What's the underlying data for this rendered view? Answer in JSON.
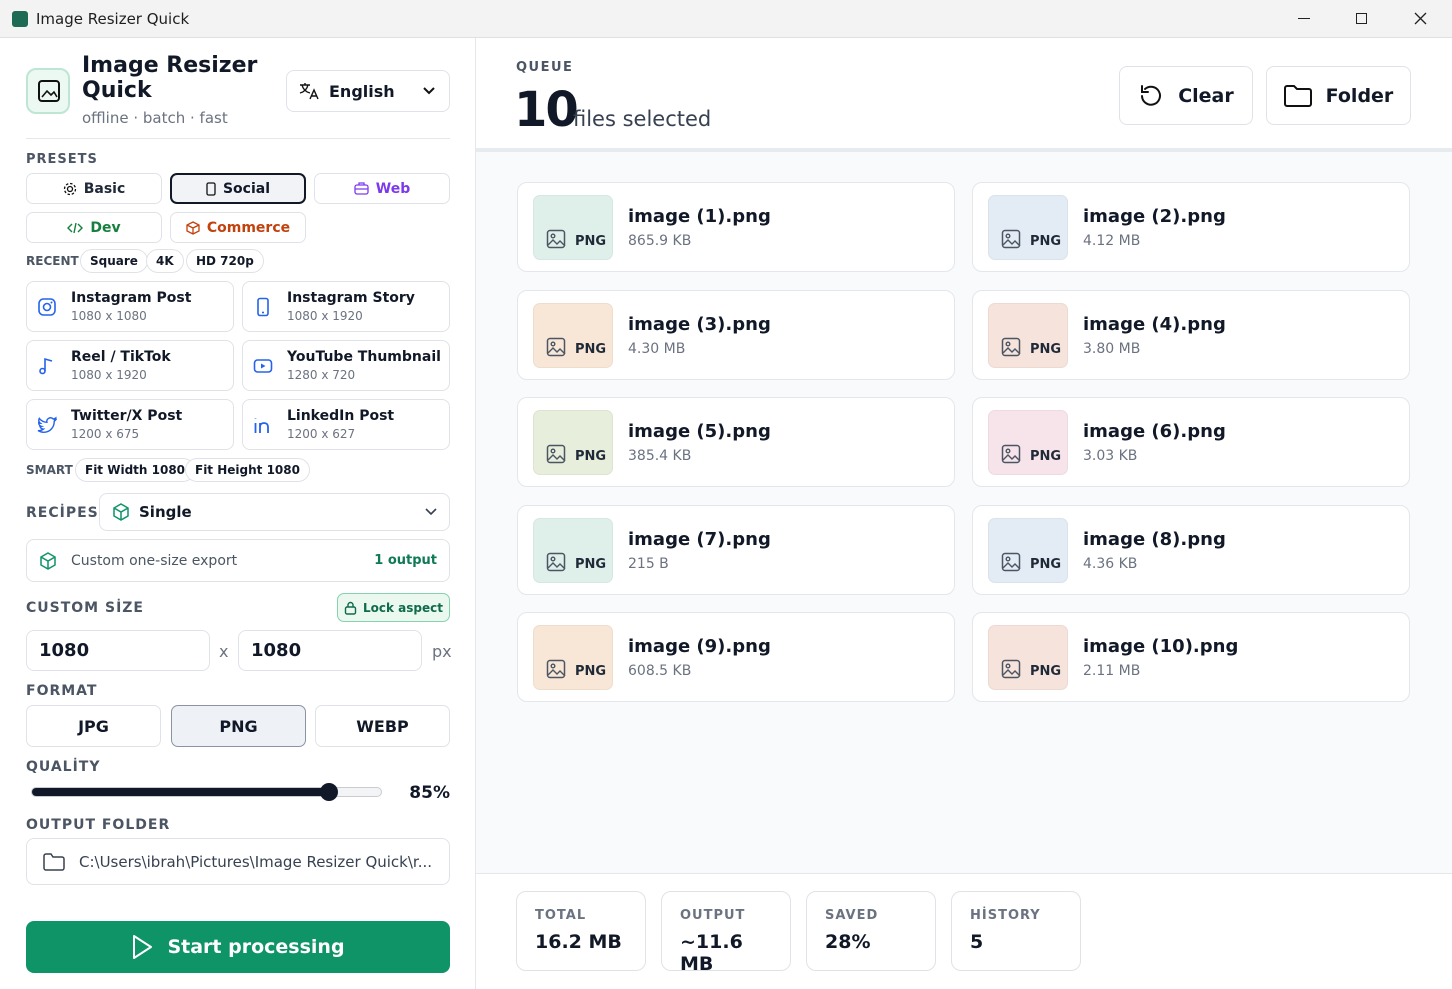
{
  "window": {
    "title": "Image Resizer Quick"
  },
  "sidebar": {
    "app_name": "Image Resizer Quick",
    "tagline": "offline · batch · fast",
    "language": "English",
    "presets_label": "PRESETS",
    "presets": [
      {
        "label": "Basic",
        "color": "#1f2937"
      },
      {
        "label": "Social",
        "color": "#111827",
        "selected": true
      },
      {
        "label": "Web",
        "color": "#7c3aed"
      },
      {
        "label": "Dev",
        "color": "#15803d"
      },
      {
        "label": "Commerce",
        "color": "#c2410c"
      }
    ],
    "recent_label": "RECENT",
    "recent": [
      "Square",
      "4K",
      "HD 720p"
    ],
    "social_presets": [
      {
        "name": "Instagram Post",
        "size": "1080 x 1080"
      },
      {
        "name": "Instagram Story",
        "size": "1080 x 1920"
      },
      {
        "name": "Reel / TikTok",
        "size": "1080 x 1920"
      },
      {
        "name": "YouTube Thumbnail",
        "size": "1280 x 720"
      },
      {
        "name": "Twitter/X Post",
        "size": "1200 x 675"
      },
      {
        "name": "LinkedIn Post",
        "size": "1200 x 627"
      }
    ],
    "smart_label": "SMART",
    "smart": [
      "Fit Width 1080",
      "Fit Height 1080"
    ],
    "recipes_label": "RECİPES",
    "recipe": "Single",
    "recipe_desc": "Custom one-size export",
    "recipe_outputs": "1 output",
    "custom_size_label": "CUSTOM SİZE",
    "lock_aspect": "Lock aspect",
    "width": "1080",
    "times": "x",
    "height": "1080",
    "unit": "px",
    "format_label": "FORMAT",
    "formats": [
      {
        "label": "JPG"
      },
      {
        "label": "PNG",
        "selected": true
      },
      {
        "label": "WEBP"
      }
    ],
    "quality_label": "QUALİTY",
    "quality": {
      "value": 85,
      "label": "85%"
    },
    "output_folder_label": "OUTPUT FOLDER",
    "output_folder": "C:\\Users\\ibrah\\Pictures\\Image Resizer Quick\\r...",
    "start": "Start processing"
  },
  "queue": {
    "label": "QUEUE",
    "count": "10",
    "count_text": "files selected",
    "clear": "Clear",
    "folder": "Folder",
    "files": [
      {
        "name": "image (1).png",
        "size": "865.9 KB",
        "type": "PNG",
        "color": "#dff0ea"
      },
      {
        "name": "image (2).png",
        "size": "4.12 MB",
        "type": "PNG",
        "color": "#e3ecf5"
      },
      {
        "name": "image (3).png",
        "size": "4.30 MB",
        "type": "PNG",
        "color": "#f8e7d6"
      },
      {
        "name": "image (4).png",
        "size": "3.80 MB",
        "type": "PNG",
        "color": "#f6e3db"
      },
      {
        "name": "image (5).png",
        "size": "385.4 KB",
        "type": "PNG",
        "color": "#e7eedb"
      },
      {
        "name": "image (6).png",
        "size": "3.03 KB",
        "type": "PNG",
        "color": "#f7e4ea"
      },
      {
        "name": "image (7).png",
        "size": "215 B",
        "type": "PNG",
        "color": "#dff0ea"
      },
      {
        "name": "image (8).png",
        "size": "4.36 KB",
        "type": "PNG",
        "color": "#e3ecf5"
      },
      {
        "name": "image (9).png",
        "size": "608.5 KB",
        "type": "PNG",
        "color": "#f8e7d6"
      },
      {
        "name": "image (10).png",
        "size": "2.11 MB",
        "type": "PNG",
        "color": "#f6e3db"
      }
    ]
  },
  "stats": [
    {
      "label": "TOTAL",
      "value": "16.2 MB"
    },
    {
      "label": "OUTPUT",
      "value": "~11.6 MB"
    },
    {
      "label": "SAVED",
      "value": "28%"
    },
    {
      "label": "HİSTORY",
      "value": "5"
    }
  ]
}
